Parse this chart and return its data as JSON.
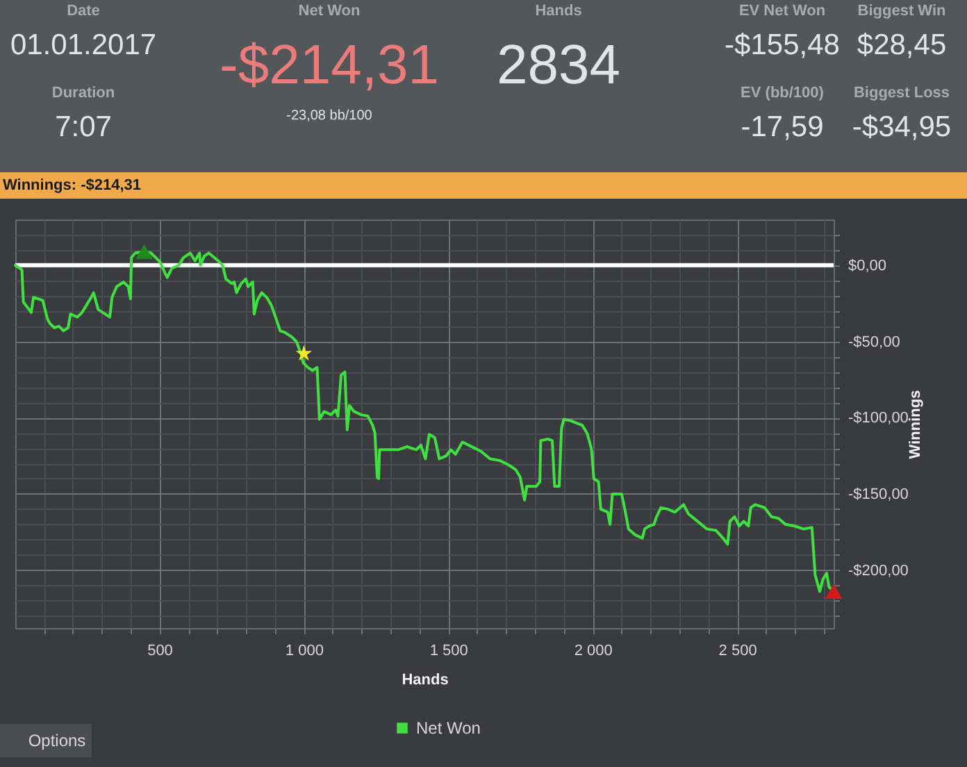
{
  "chart_data": [
    {
      "type": "other",
      "annotations": [
        "Date",
        "01.01.2017",
        "Duration",
        "7:07",
        "Net Won",
        "-$214,31",
        "-23,08 bb/100",
        "Hands",
        "2834",
        "EV Net Won",
        "-$155,48",
        "EV (bb/100)",
        "-17,59",
        "Biggest Win",
        "$28,45",
        "Biggest Loss",
        "-$34,95",
        "Options"
      ]
    },
    {
      "type": "line",
      "title": "Winnings: -$214,31",
      "xlabel": "Hands",
      "ylabel": "Winnings",
      "xlim": [
        1,
        2834
      ],
      "ylim": [
        -238,
        30
      ],
      "xticks": [
        {
          "value": 100,
          "label": null
        },
        {
          "value": 200,
          "label": null
        },
        {
          "value": 300,
          "label": null
        },
        {
          "value": 400,
          "label": null
        },
        500,
        {
          "value": 600,
          "label": null
        },
        {
          "value": 700,
          "label": null
        },
        {
          "value": 800,
          "label": null
        },
        {
          "value": 900,
          "label": null
        },
        {
          "value": 1000,
          "label": "1 000"
        },
        {
          "value": 1100,
          "label": null
        },
        {
          "value": 1200,
          "label": null
        },
        {
          "value": 1300,
          "label": null
        },
        {
          "value": 1400,
          "label": null
        },
        {
          "value": 1500,
          "label": "1 500"
        },
        {
          "value": 1600,
          "label": null
        },
        {
          "value": 1700,
          "label": null
        },
        {
          "value": 1800,
          "label": null
        },
        {
          "value": 1900,
          "label": null
        },
        {
          "value": 2000,
          "label": "2 000"
        },
        {
          "value": 2100,
          "label": null
        },
        {
          "value": 2200,
          "label": null
        },
        {
          "value": 2300,
          "label": null
        },
        {
          "value": 2400,
          "label": null
        },
        {
          "value": 2500,
          "label": "2 500"
        },
        {
          "value": 2600,
          "label": null
        },
        {
          "value": 2700,
          "label": null
        },
        {
          "value": 2800,
          "label": null
        }
      ],
      "yticks": [
        {
          "value": 20,
          "label": null
        },
        {
          "value": 10,
          "label": null
        },
        {
          "value": 0,
          "label": "$0,00"
        },
        {
          "value": -10,
          "label": null
        },
        {
          "value": -20,
          "label": null
        },
        {
          "value": -30,
          "label": null
        },
        {
          "value": -40,
          "label": null
        },
        {
          "value": -50,
          "label": "-$50,00"
        },
        {
          "value": -60,
          "label": null
        },
        {
          "value": -70,
          "label": null
        },
        {
          "value": -80,
          "label": null
        },
        {
          "value": -90,
          "label": null
        },
        {
          "value": -100,
          "label": "-$100,00"
        },
        {
          "value": -110,
          "label": null
        },
        {
          "value": -120,
          "label": null
        },
        {
          "value": -130,
          "label": null
        },
        {
          "value": -140,
          "label": null
        },
        {
          "value": -150,
          "label": "-$150,00"
        },
        {
          "value": -160,
          "label": null
        },
        {
          "value": -170,
          "label": null
        },
        {
          "value": -180,
          "label": null
        },
        {
          "value": -190,
          "label": null
        },
        {
          "value": -200,
          "label": "-$200,00"
        },
        {
          "value": -210,
          "label": null
        },
        {
          "value": -220,
          "label": null
        },
        {
          "value": -230,
          "label": null
        }
      ],
      "grid": true,
      "legend": "bottom",
      "line_style": "solid",
      "ref_lines": [
        {
          "axis": "y",
          "value": 0,
          "color": "#ffffff"
        }
      ],
      "series": [
        {
          "name": "Net Won",
          "color": "#3fe03f",
          "x": [
            1,
            24,
            29,
            56,
            64,
            96,
            112,
            120,
            136,
            152,
            168,
            184,
            192,
            216,
            232,
            248,
            264,
            272,
            288,
            304,
            328,
            336,
            352,
            376,
            392,
            400,
            403,
            416,
            447,
            471,
            503,
            519,
            527,
            543,
            567,
            583,
            607,
            623,
            639,
            642,
            655,
            671,
            703,
            719,
            730,
            751,
            759,
            767,
            783,
            799,
            807,
            823,
            828,
            839,
            854,
            871,
            887,
            902,
            918,
            934,
            958,
            974,
            990,
            998,
            1014,
            1030,
            1046,
            1054,
            1070,
            1094,
            1110,
            1118,
            1129,
            1142,
            1150,
            1158,
            1174,
            1198,
            1222,
            1238,
            1246,
            1254,
            1259,
            1262,
            1326,
            1357,
            1389,
            1405,
            1421,
            1434,
            1453,
            1469,
            1493,
            1509,
            1525,
            1549,
            1581,
            1613,
            1645,
            1677,
            1709,
            1733,
            1749,
            1764,
            1772,
            1805,
            1817,
            1820,
            1844,
            1860,
            1868,
            1884,
            1892,
            1900,
            1924,
            1964,
            1980,
            1988,
            1996,
            2004,
            2020,
            2028,
            2052,
            2060,
            2068,
            2100,
            2108,
            2124,
            2148,
            2172,
            2180,
            2196,
            2212,
            2219,
            2236,
            2260,
            2284,
            2315,
            2331,
            2363,
            2395,
            2427,
            2451,
            2467,
            2475,
            2491,
            2507,
            2523,
            2539,
            2547,
            2563,
            2595,
            2619,
            2643,
            2667,
            2698,
            2730,
            2759,
            2770,
            2786,
            2797,
            2810,
            2818,
            2834
          ],
          "values": [
            0,
            -3,
            -24,
            -31,
            -21,
            -23,
            -35,
            -38,
            -41,
            -40,
            -43,
            -41,
            -32,
            -34,
            -31,
            -26,
            -21,
            -18,
            -29,
            -31,
            -34,
            -21,
            -14,
            -11,
            -14,
            -22,
            5,
            8,
            9,
            8,
            2,
            -5,
            -8,
            -2,
            0,
            5,
            8,
            3,
            8,
            0,
            6,
            8,
            3,
            0,
            -9,
            -12,
            -11,
            -18,
            -12,
            -9,
            -14,
            -11,
            -32,
            -23,
            -18,
            -21,
            -26,
            -34,
            -43,
            -44,
            -47,
            -50,
            -58,
            -64,
            -67,
            -69,
            -67,
            -101,
            -96,
            -98,
            -95,
            -99,
            -72,
            -70,
            -108,
            -92,
            -96,
            -98,
            -99,
            -105,
            -110,
            -139,
            -140,
            -121,
            -121,
            -119,
            -121,
            -118,
            -127,
            -111,
            -113,
            -127,
            -125,
            -121,
            -124,
            -116,
            -119,
            -122,
            -127,
            -128,
            -131,
            -134,
            -139,
            -154,
            -145,
            -145,
            -142,
            -115,
            -114,
            -115,
            -145,
            -145,
            -107,
            -101,
            -102,
            -105,
            -110,
            -115,
            -121,
            -140,
            -142,
            -160,
            -162,
            -170,
            -150,
            -150,
            -157,
            -173,
            -177,
            -179,
            -173,
            -171,
            -170,
            -166,
            -159,
            -160,
            -162,
            -157,
            -163,
            -168,
            -173,
            -174,
            -179,
            -183,
            -168,
            -165,
            -171,
            -168,
            -171,
            -159,
            -157,
            -159,
            -165,
            -166,
            -170,
            -171,
            -173,
            -172,
            -203,
            -214,
            -206,
            -202,
            -211,
            -214
          ]
        },
        {
          "type": "scatter",
          "marker": "triangle",
          "color": "#1f8a1f",
          "x": [
            447
          ],
          "values": [
            9
          ]
        },
        {
          "type": "scatter",
          "marker": "star",
          "color": "#f5e823",
          "x": [
            1000
          ],
          "values": [
            -58
          ]
        },
        {
          "type": "scatter",
          "marker": "triangle",
          "color": "#d41a1a",
          "x": [
            2834
          ],
          "values": [
            -214
          ]
        }
      ]
    }
  ]
}
